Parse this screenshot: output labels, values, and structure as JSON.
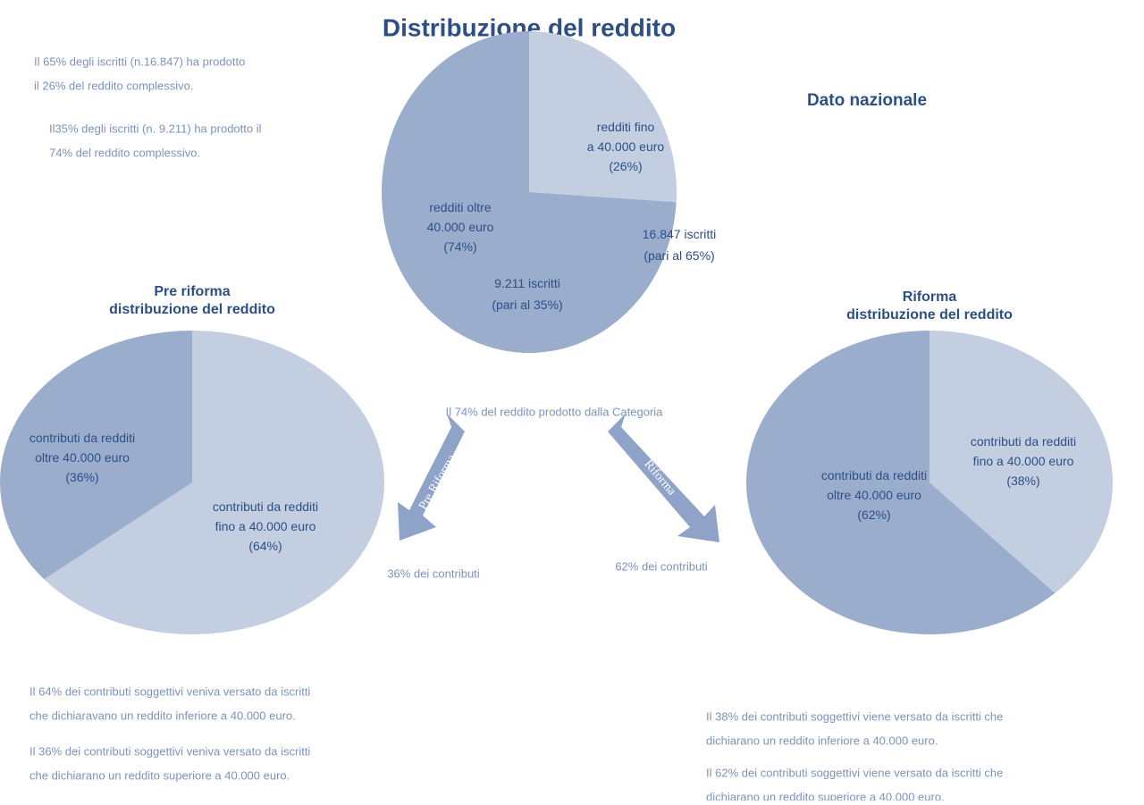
{
  "title": "Distribuzione del reddito",
  "subtitle": "Dato nazionale",
  "notes_top": [
    [
      "Il 65% degli iscritti (n.16.847) ha prodotto",
      "il 26% del reddito complessivo."
    ],
    [
      "Il35% degli iscritti (n. 9.211) ha prodotto il",
      "74% del reddito complessivo."
    ]
  ],
  "center_caption": "Il 74% del reddito prodotto dalla Categoria",
  "arrows": [
    "Pre Riforma",
    "Riforma"
  ],
  "arrow_captions": [
    "36% dei contributi",
    "62% dei contributi"
  ],
  "notes_bottom_left": [
    [
      "Il 64% dei contributi soggettivi veniva versato da iscritti",
      "che dichiaravano un reddito inferiore a 40.000 euro."
    ],
    [
      "Il 36% dei contributi soggettivi veniva versato da iscritti",
      "che dichiarano un reddito superiore a 40.000 euro."
    ]
  ],
  "notes_bottom_right": [
    [
      "Il 38% dei contributi soggettivi viene versato da iscritti che",
      "dichiarano un reddito inferiore a 40.000 euro."
    ],
    [
      "Il 62% dei contributi soggettivi viene versato da iscritti che",
      "dichiarano un reddito superiore a 40.000 euro."
    ]
  ],
  "chart_data": [
    {
      "type": "pie",
      "categories": [
        "redditi fino\na 40.000 euro\n(26%)",
        "redditi oltre\n40.000 euro\n(74%)"
      ],
      "values": [
        26,
        74
      ],
      "colors": [
        "#c4cee1",
        "#9badcc"
      ],
      "annotations": [
        "16.847 iscritti\n(pari al 65%)",
        "9.211 iscritti\n(pari al 35%)"
      ]
    },
    {
      "type": "pie",
      "title": "Pre riforma\ndistribuzione del reddito",
      "categories": [
        "contributi da redditi\nfino a 40.000 euro\n(64%)",
        "contributi da redditi\noltre 40.000 euro\n(36%)"
      ],
      "values": [
        64,
        36
      ],
      "colors": [
        "#c4cee1",
        "#9badcc"
      ]
    },
    {
      "type": "pie",
      "title": "Riforma\ndistribuzione del reddito",
      "categories": [
        "contributi da redditi\nfino a 40.000 euro\n(38%)",
        "contributi da redditi\noltre 40.000 euro\n(62%)"
      ],
      "values": [
        38,
        62
      ],
      "colors": [
        "#c4cee1",
        "#9badcc"
      ]
    }
  ]
}
